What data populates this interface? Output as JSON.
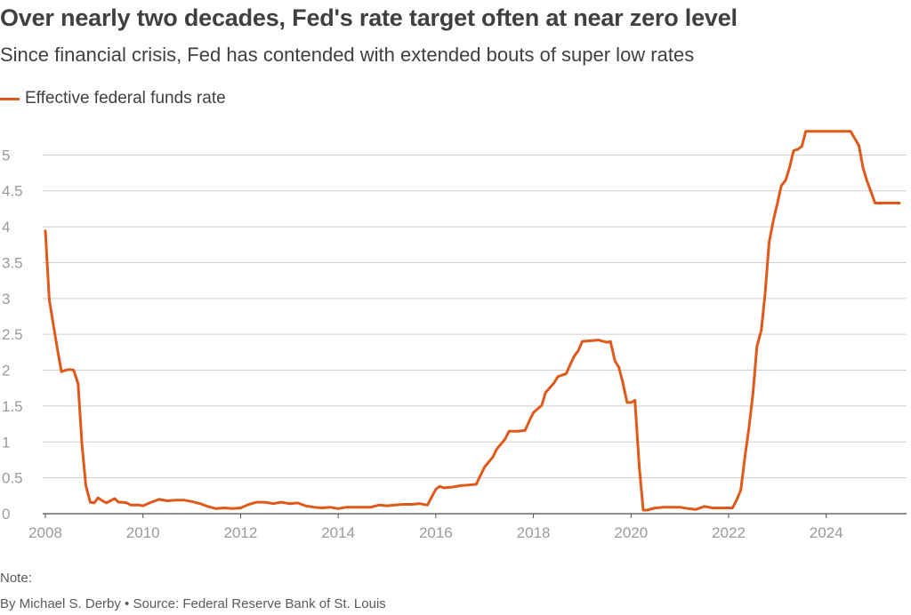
{
  "colors": {
    "series": "#e0591a",
    "grid": "#cfcfcf",
    "axis": "#4a4a4a",
    "tick_text": "#9a9a9a"
  },
  "header": {
    "title": "Over nearly two decades, Fed's rate target often at near zero level",
    "subtitle": "Since financial crisis, Fed has contended with extended bouts of super low rates"
  },
  "footer": {
    "note": "Note:",
    "credit": "By Michael S. Derby • Source: Federal Reserve Bank of St. Louis"
  },
  "chart_data": {
    "type": "line",
    "title": "Over nearly two decades, Fed's rate target often at near zero level",
    "subtitle": "Since financial crisis, Fed has contended with extended bouts of super low rates",
    "xlabel": "",
    "ylabel": "",
    "grid": true,
    "legend_position": "top-left",
    "xlim": [
      2008.0,
      2025.5
    ],
    "ylim": [
      0,
      5.5
    ],
    "x_ticks": [
      2008,
      2010,
      2012,
      2014,
      2016,
      2018,
      2020,
      2022,
      2024
    ],
    "x_tick_labels": [
      "2008",
      "2010",
      "2012",
      "2014",
      "2016",
      "2018",
      "2020",
      "2022",
      "2024"
    ],
    "y_ticks": [
      0,
      0.5,
      1,
      1.5,
      2,
      2.5,
      3,
      3.5,
      4,
      4.5,
      5
    ],
    "y_tick_labels": [
      "0",
      "0.5",
      "1",
      "1.5",
      "2",
      "2.5",
      "3",
      "3.5",
      "4",
      "4.5",
      "5"
    ],
    "series": [
      {
        "name": "Effective federal funds rate",
        "x": [
          2008.0,
          2008.08,
          2008.17,
          2008.25,
          2008.33,
          2008.42,
          2008.5,
          2008.58,
          2008.67,
          2008.75,
          2008.83,
          2008.92,
          2009.0,
          2009.08,
          2009.17,
          2009.25,
          2009.33,
          2009.42,
          2009.5,
          2009.58,
          2009.67,
          2009.75,
          2009.83,
          2009.92,
          2010.0,
          2010.17,
          2010.33,
          2010.5,
          2010.67,
          2010.83,
          2011.0,
          2011.17,
          2011.33,
          2011.5,
          2011.67,
          2011.83,
          2012.0,
          2012.17,
          2012.33,
          2012.5,
          2012.67,
          2012.83,
          2013.0,
          2013.17,
          2013.33,
          2013.5,
          2013.67,
          2013.83,
          2014.0,
          2014.17,
          2014.33,
          2014.5,
          2014.67,
          2014.83,
          2015.0,
          2015.17,
          2015.33,
          2015.5,
          2015.67,
          2015.83,
          2015.92,
          2016.0,
          2016.08,
          2016.17,
          2016.33,
          2016.5,
          2016.67,
          2016.83,
          2016.92,
          2017.0,
          2017.17,
          2017.25,
          2017.42,
          2017.5,
          2017.67,
          2017.83,
          2017.92,
          2018.0,
          2018.17,
          2018.25,
          2018.42,
          2018.5,
          2018.67,
          2018.83,
          2018.92,
          2019.0,
          2019.17,
          2019.33,
          2019.5,
          2019.58,
          2019.67,
          2019.75,
          2019.83,
          2019.92,
          2020.0,
          2020.08,
          2020.17,
          2020.25,
          2020.33,
          2020.5,
          2020.67,
          2020.83,
          2021.0,
          2021.17,
          2021.33,
          2021.5,
          2021.67,
          2021.83,
          2022.0,
          2022.08,
          2022.17,
          2022.25,
          2022.33,
          2022.42,
          2022.5,
          2022.58,
          2022.67,
          2022.75,
          2022.83,
          2022.92,
          2023.0,
          2023.08,
          2023.17,
          2023.25,
          2023.33,
          2023.42,
          2023.5,
          2023.58,
          2023.67,
          2023.83,
          2024.0,
          2024.17,
          2024.33,
          2024.5,
          2024.67,
          2024.75,
          2024.83,
          2024.92,
          2025.0,
          2025.17,
          2025.33,
          2025.5
        ],
        "values": [
          3.94,
          2.98,
          2.61,
          2.28,
          1.98,
          2.0,
          2.01,
          2.0,
          1.81,
          0.97,
          0.39,
          0.16,
          0.15,
          0.22,
          0.18,
          0.15,
          0.18,
          0.21,
          0.16,
          0.16,
          0.15,
          0.12,
          0.12,
          0.12,
          0.11,
          0.16,
          0.2,
          0.18,
          0.19,
          0.19,
          0.17,
          0.14,
          0.1,
          0.07,
          0.08,
          0.07,
          0.08,
          0.13,
          0.16,
          0.16,
          0.14,
          0.16,
          0.14,
          0.15,
          0.11,
          0.09,
          0.08,
          0.09,
          0.07,
          0.09,
          0.09,
          0.09,
          0.09,
          0.12,
          0.11,
          0.12,
          0.13,
          0.13,
          0.14,
          0.12,
          0.24,
          0.34,
          0.38,
          0.36,
          0.37,
          0.39,
          0.4,
          0.41,
          0.54,
          0.65,
          0.79,
          0.9,
          1.04,
          1.15,
          1.15,
          1.16,
          1.3,
          1.41,
          1.51,
          1.69,
          1.82,
          1.91,
          1.95,
          2.19,
          2.27,
          2.4,
          2.41,
          2.42,
          2.39,
          2.4,
          2.13,
          2.04,
          1.83,
          1.55,
          1.55,
          1.58,
          0.65,
          0.05,
          0.05,
          0.08,
          0.09,
          0.09,
          0.09,
          0.07,
          0.06,
          0.1,
          0.08,
          0.08,
          0.08,
          0.08,
          0.2,
          0.33,
          0.77,
          1.21,
          1.68,
          2.33,
          2.56,
          3.08,
          3.78,
          4.1,
          4.33,
          4.57,
          4.65,
          4.83,
          5.06,
          5.08,
          5.12,
          5.33,
          5.33,
          5.33,
          5.33,
          5.33,
          5.33,
          5.33,
          5.13,
          4.83,
          4.65,
          4.48,
          4.33,
          4.33,
          4.33,
          4.33
        ]
      }
    ]
  }
}
